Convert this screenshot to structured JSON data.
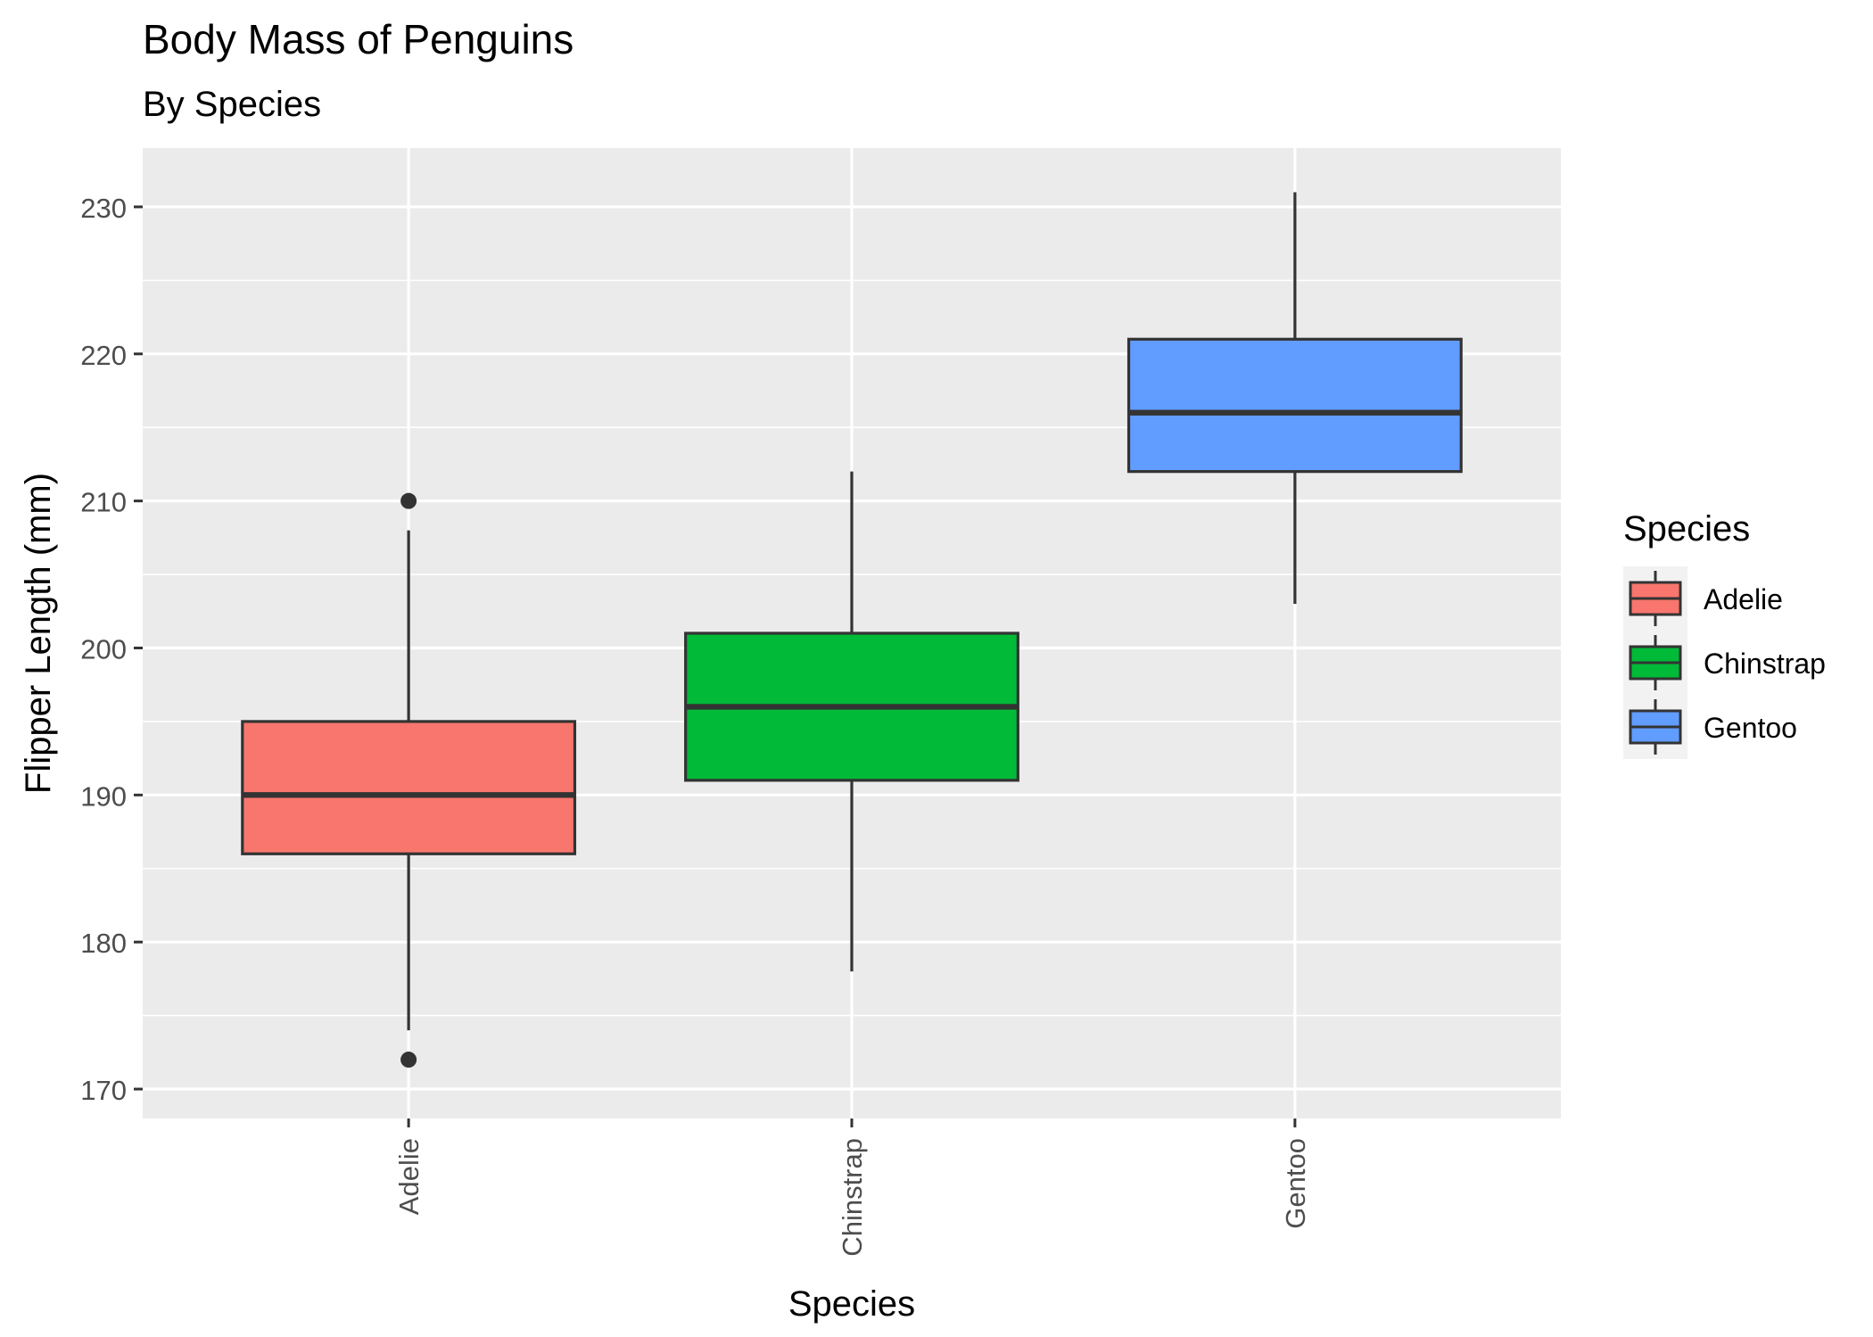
{
  "chart_data": {
    "type": "boxplot",
    "title": "Body Mass of Penguins",
    "subtitle": "By Species",
    "xlabel": "Species",
    "ylabel": "Flipper Length (mm)",
    "ylim": [
      168,
      234
    ],
    "yticks": [
      170,
      180,
      190,
      200,
      210,
      220,
      230
    ],
    "categories": [
      "Adelie",
      "Chinstrap",
      "Gentoo"
    ],
    "series": [
      {
        "name": "Adelie",
        "color": "#F8766D",
        "whisker_low": 174,
        "q1": 186,
        "median": 190,
        "q3": 195,
        "whisker_high": 208,
        "outliers": [
          210,
          172
        ]
      },
      {
        "name": "Chinstrap",
        "color": "#00BA38",
        "whisker_low": 178,
        "q1": 191,
        "median": 196,
        "q3": 201,
        "whisker_high": 212,
        "outliers": []
      },
      {
        "name": "Gentoo",
        "color": "#619CFF",
        "whisker_low": 203,
        "q1": 212,
        "median": 216,
        "q3": 221,
        "whisker_high": 231,
        "outliers": []
      }
    ],
    "legend": {
      "title": "Species",
      "position": "right"
    },
    "grid": true,
    "panel_background": "#EBEBEB"
  }
}
